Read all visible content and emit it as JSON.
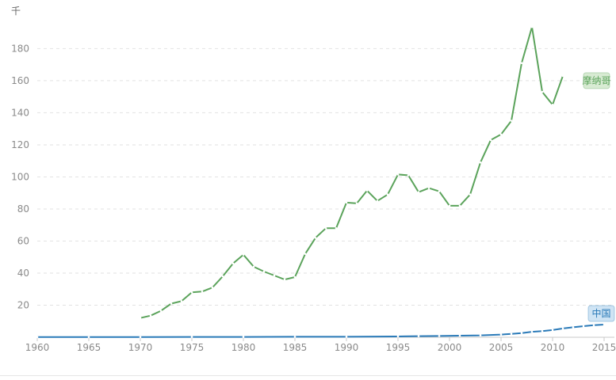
{
  "chart_data": {
    "type": "line",
    "unit_label": "千",
    "x_ticks": [
      "1960",
      "1965",
      "1970",
      "1975",
      "1980",
      "1985",
      "1990",
      "1995",
      "2000",
      "2005",
      "2010",
      "2015"
    ],
    "y_ticks": [
      "20",
      "40",
      "60",
      "80",
      "100",
      "120",
      "140",
      "160",
      "180"
    ],
    "xlim": [
      1960,
      2015
    ],
    "ylim": [
      0,
      196
    ],
    "grid": "horizontal-dashed",
    "series": [
      {
        "name": "摩纳哥",
        "color": "#5ba35b",
        "label_bg": "#d8ebd3",
        "x": [
          1970,
          1971,
          1972,
          1973,
          1974,
          1975,
          1976,
          1977,
          1978,
          1979,
          1980,
          1981,
          1982,
          1983,
          1984,
          1985,
          1986,
          1987,
          1988,
          1989,
          1990,
          1991,
          1992,
          1993,
          1994,
          1995,
          1996,
          1997,
          1998,
          1999,
          2000,
          2001,
          2002,
          2003,
          2004,
          2005,
          2006,
          2007,
          2008,
          2009,
          2010,
          2011
        ],
        "values": [
          12,
          13.5,
          16.5,
          21,
          22.5,
          28,
          28.5,
          31,
          38,
          46,
          51.5,
          44,
          41,
          38.5,
          36,
          37.5,
          52,
          62,
          68,
          68,
          84,
          83.5,
          91.5,
          85,
          89,
          101.5,
          101,
          90.5,
          93,
          91,
          82,
          82,
          89,
          109,
          123,
          126.5,
          135,
          171,
          193.5,
          153,
          145,
          163
        ]
      },
      {
        "name": "中国",
        "color": "#2a7ab8",
        "label_bg": "#cfe4f4",
        "x": [
          1960,
          1965,
          1970,
          1975,
          1980,
          1985,
          1990,
          1995,
          1997,
          1999,
          2001,
          2003,
          2005,
          2006,
          2007,
          2008,
          2009,
          2010,
          2011,
          2012,
          2013,
          2014,
          2015
        ],
        "values": [
          0.1,
          0.1,
          0.1,
          0.2,
          0.2,
          0.3,
          0.3,
          0.5,
          0.7,
          0.8,
          1.0,
          1.2,
          1.7,
          2.1,
          2.6,
          3.4,
          3.8,
          4.5,
          5.5,
          6.2,
          6.9,
          7.5,
          7.9
        ]
      }
    ]
  }
}
